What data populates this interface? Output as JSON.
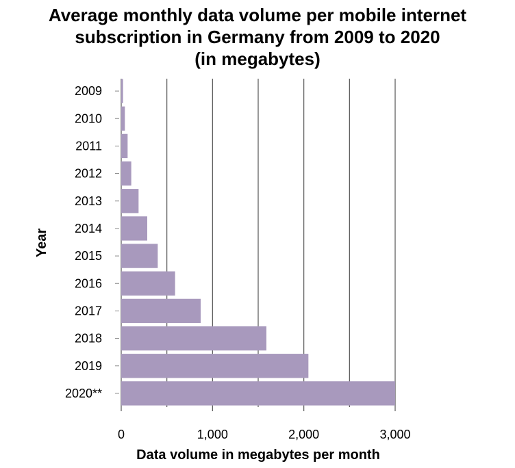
{
  "chart_data": {
    "type": "bar",
    "orientation": "horizontal",
    "title_lines": [
      "Average monthly data volume per mobile internet",
      "subscription in Germany from 2009 to 2020",
      "(in megabytes)"
    ],
    "xlabel": "Data volume in megabytes per month",
    "ylabel": "Year",
    "categories": [
      "2009",
      "2010",
      "2011",
      "2012",
      "2013",
      "2014",
      "2015",
      "2016",
      "2017",
      "2018",
      "2019",
      "2020**"
    ],
    "values": [
      20,
      40,
      70,
      110,
      190,
      285,
      400,
      590,
      870,
      1590,
      2050,
      3000
    ],
    "xlim": [
      0,
      3000
    ],
    "xticks": [
      0,
      1000,
      2000,
      3000
    ],
    "xtick_labels": [
      "0",
      "1,000",
      "2,000",
      "3,000"
    ],
    "grid": "vertical",
    "bar_color": "#a899bd",
    "grid_color": "#555555"
  }
}
